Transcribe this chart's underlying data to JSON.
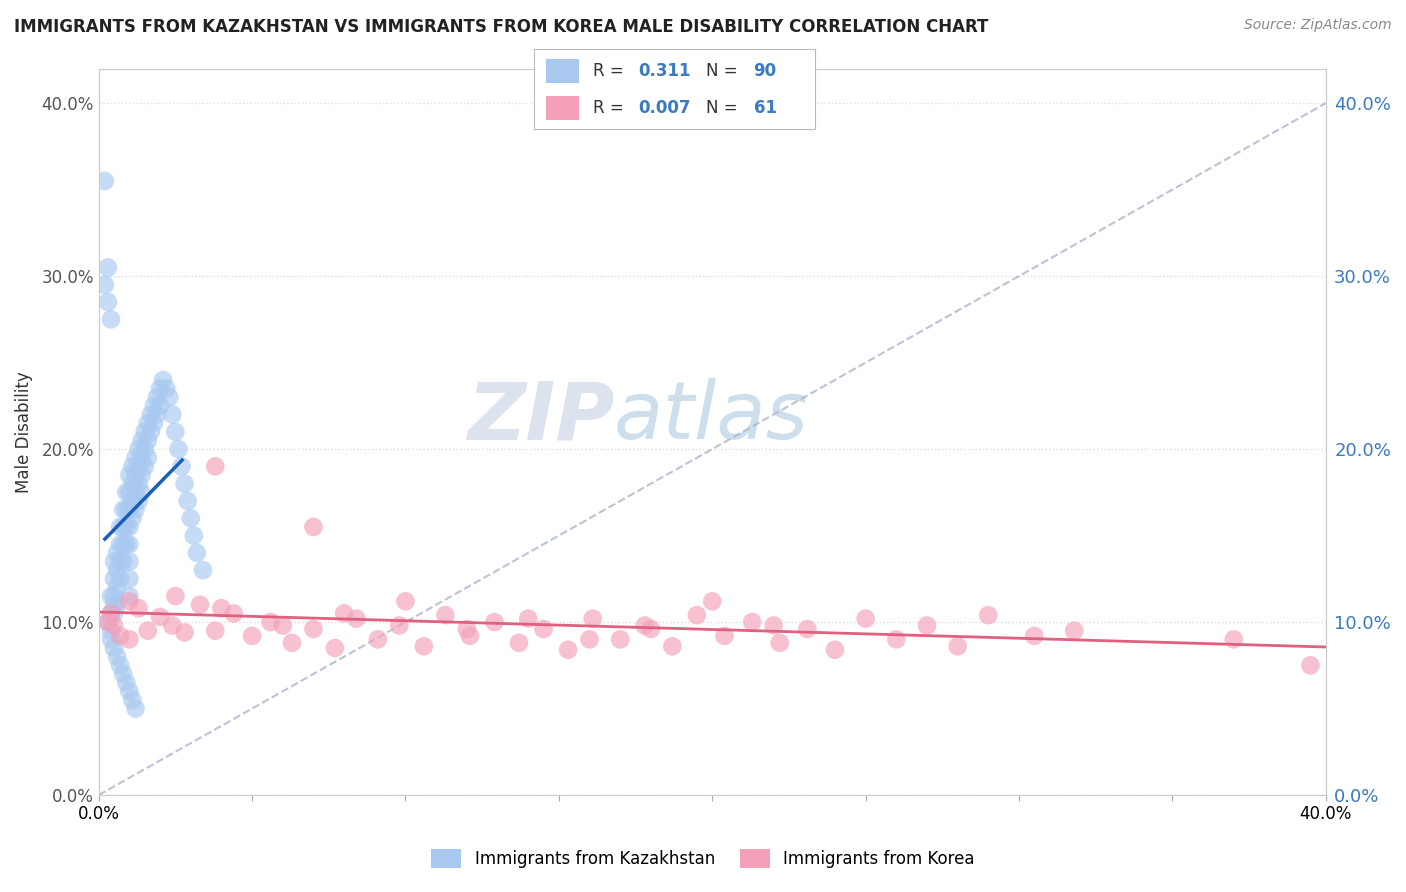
{
  "title": "IMMIGRANTS FROM KAZAKHSTAN VS IMMIGRANTS FROM KOREA MALE DISABILITY CORRELATION CHART",
  "source": "Source: ZipAtlas.com",
  "ylabel": "Male Disability",
  "xlim": [
    0.0,
    0.4
  ],
  "ylim": [
    0.0,
    0.42
  ],
  "legend_R1": "0.311",
  "legend_N1": "90",
  "legend_R2": "0.007",
  "legend_N2": "61",
  "color_kazakhstan": "#a8c8f0",
  "color_korea": "#f4a0b8",
  "regression_color_kazakhstan": "#1a5fb4",
  "regression_color_korea": "#e06080",
  "diagonal_color": "#aab4cc",
  "background_color": "#ffffff",
  "watermark_zip": "ZIP",
  "watermark_atlas": "atlas",
  "kazakhstan_x": [
    0.002,
    0.003,
    0.004,
    0.004,
    0.004,
    0.005,
    0.005,
    0.005,
    0.005,
    0.005,
    0.006,
    0.006,
    0.006,
    0.006,
    0.007,
    0.007,
    0.007,
    0.007,
    0.008,
    0.008,
    0.008,
    0.008,
    0.009,
    0.009,
    0.009,
    0.009,
    0.01,
    0.01,
    0.01,
    0.01,
    0.01,
    0.01,
    0.01,
    0.01,
    0.011,
    0.011,
    0.011,
    0.011,
    0.012,
    0.012,
    0.012,
    0.012,
    0.013,
    0.013,
    0.013,
    0.013,
    0.014,
    0.014,
    0.014,
    0.014,
    0.015,
    0.015,
    0.015,
    0.016,
    0.016,
    0.016,
    0.017,
    0.017,
    0.018,
    0.018,
    0.019,
    0.019,
    0.02,
    0.02,
    0.021,
    0.022,
    0.023,
    0.024,
    0.025,
    0.026,
    0.027,
    0.028,
    0.029,
    0.03,
    0.031,
    0.032,
    0.034,
    0.002,
    0.003,
    0.004,
    0.004,
    0.005,
    0.006,
    0.007,
    0.008,
    0.009,
    0.01,
    0.011,
    0.012,
    0.003
  ],
  "kazakhstan_y": [
    0.355,
    0.1,
    0.095,
    0.105,
    0.115,
    0.135,
    0.125,
    0.115,
    0.11,
    0.105,
    0.14,
    0.13,
    0.12,
    0.11,
    0.155,
    0.145,
    0.135,
    0.125,
    0.165,
    0.155,
    0.145,
    0.135,
    0.175,
    0.165,
    0.155,
    0.145,
    0.185,
    0.175,
    0.165,
    0.155,
    0.145,
    0.135,
    0.125,
    0.115,
    0.19,
    0.18,
    0.17,
    0.16,
    0.195,
    0.185,
    0.175,
    0.165,
    0.2,
    0.19,
    0.18,
    0.17,
    0.205,
    0.195,
    0.185,
    0.175,
    0.21,
    0.2,
    0.19,
    0.215,
    0.205,
    0.195,
    0.22,
    0.21,
    0.225,
    0.215,
    0.23,
    0.22,
    0.235,
    0.225,
    0.24,
    0.235,
    0.23,
    0.22,
    0.21,
    0.2,
    0.19,
    0.18,
    0.17,
    0.16,
    0.15,
    0.14,
    0.13,
    0.295,
    0.285,
    0.275,
    0.09,
    0.085,
    0.08,
    0.075,
    0.07,
    0.065,
    0.06,
    0.055,
    0.05,
    0.305
  ],
  "korea_x": [
    0.003,
    0.004,
    0.005,
    0.007,
    0.01,
    0.013,
    0.016,
    0.02,
    0.024,
    0.028,
    0.033,
    0.038,
    0.044,
    0.05,
    0.056,
    0.063,
    0.07,
    0.077,
    0.084,
    0.091,
    0.098,
    0.106,
    0.113,
    0.121,
    0.129,
    0.137,
    0.145,
    0.153,
    0.161,
    0.17,
    0.178,
    0.187,
    0.195,
    0.204,
    0.213,
    0.222,
    0.231,
    0.24,
    0.25,
    0.26,
    0.27,
    0.28,
    0.29,
    0.305,
    0.318,
    0.01,
    0.025,
    0.04,
    0.06,
    0.08,
    0.1,
    0.12,
    0.14,
    0.16,
    0.18,
    0.2,
    0.22,
    0.37,
    0.395,
    0.038,
    0.07
  ],
  "korea_y": [
    0.1,
    0.105,
    0.098,
    0.092,
    0.112,
    0.108,
    0.095,
    0.103,
    0.098,
    0.094,
    0.11,
    0.095,
    0.105,
    0.092,
    0.1,
    0.088,
    0.096,
    0.085,
    0.102,
    0.09,
    0.098,
    0.086,
    0.104,
    0.092,
    0.1,
    0.088,
    0.096,
    0.084,
    0.102,
    0.09,
    0.098,
    0.086,
    0.104,
    0.092,
    0.1,
    0.088,
    0.096,
    0.084,
    0.102,
    0.09,
    0.098,
    0.086,
    0.104,
    0.092,
    0.095,
    0.09,
    0.115,
    0.108,
    0.098,
    0.105,
    0.112,
    0.096,
    0.102,
    0.09,
    0.096,
    0.112,
    0.098,
    0.09,
    0.075,
    0.19,
    0.155
  ]
}
